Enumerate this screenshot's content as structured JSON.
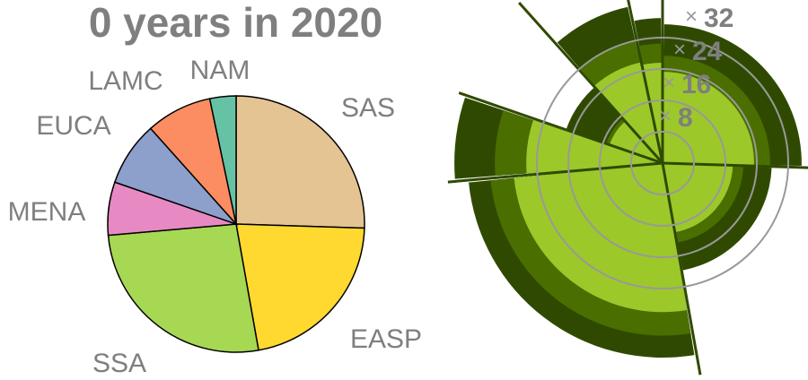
{
  "chart_data": [
    {
      "type": "pie",
      "title": "0 years in 2020",
      "categories": [
        "SAS",
        "EASP",
        "SSA",
        "MENA",
        "EUCA",
        "LAMC",
        "NAM"
      ],
      "values": [
        25.5,
        21.7,
        26.4,
        6.7,
        8.1,
        8.3,
        3.3
      ],
      "colors": [
        "#e5c494",
        "#ffd92f",
        "#a6d854",
        "#e78ac3",
        "#8da0cb",
        "#fc8d62",
        "#66c2a5"
      ],
      "start": "top",
      "direction": "clockwise"
    },
    {
      "type": "polar-area",
      "categories": [
        "SAS",
        "EASP",
        "SSA",
        "MENA",
        "EUCA",
        "LAMC",
        "NAM"
      ],
      "series": [
        {
          "values": [
            35.4,
            27.8,
            49.6,
            53.0,
            26.0,
            40.8,
            37.0
          ]
        },
        {
          "values": [
            27.4,
            20.6,
            44.0,
            42.7,
            15.2,
            31.8,
            30.5
          ]
        },
        {
          "values": [
            23.3,
            17.9,
            38.0,
            34.7,
            14.3,
            26.3,
            25.6
          ]
        }
      ],
      "colors": [
        "#2f4a00",
        "#4a6e00",
        "#9cc82a"
      ],
      "radial_ticks": [
        8,
        16,
        24,
        32
      ],
      "grid": true
    }
  ]
}
